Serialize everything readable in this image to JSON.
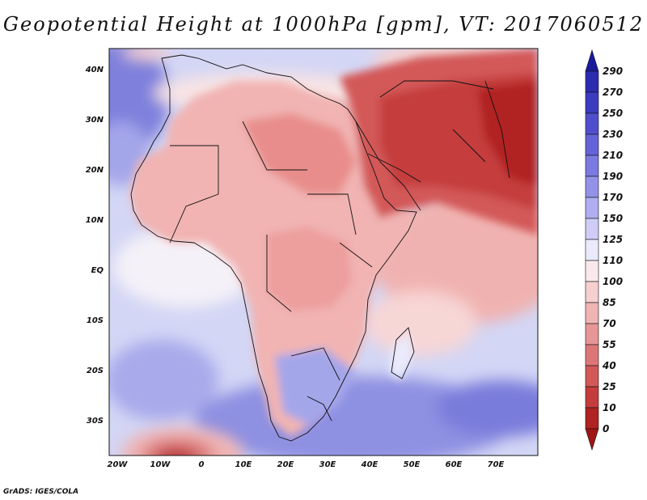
{
  "title": "Geopotential Height at 1000hPa [gpm], VT: 2017060512",
  "footer": "GrADS: IGES/COLA",
  "map": {
    "lon_ticks": [
      "20W",
      "10W",
      "0",
      "10E",
      "20E",
      "30E",
      "40E",
      "50E",
      "60E",
      "70E"
    ],
    "lat_ticks": [
      "40N",
      "30N",
      "20N",
      "10N",
      "EQ",
      "10S",
      "20S",
      "30S"
    ]
  },
  "colorbar": {
    "labels": [
      "290",
      "270",
      "250",
      "230",
      "210",
      "190",
      "170",
      "150",
      "125",
      "110",
      "100",
      "85",
      "70",
      "55",
      "40",
      "25",
      "10",
      "0"
    ],
    "colors": [
      "#1a1a9c",
      "#2c2cb0",
      "#3c3cc0",
      "#4f4fcd",
      "#6464d8",
      "#7a7ae0",
      "#9292e8",
      "#aeaef0",
      "#cdcdf6",
      "#eaeafc",
      "#fbe9e9",
      "#f6cfcf",
      "#efb4b4",
      "#e69696",
      "#dd7777",
      "#d35959",
      "#c53c3c",
      "#b12222",
      "#a01515"
    ]
  },
  "colors": {
    "ocean_west": "#cfd3f4",
    "ocean_deep": "#7e80dc",
    "land": "#f1b0ae",
    "arabia": "#c53c3c",
    "south_africa": "#9ea0e6",
    "low_center": "#a01515"
  }
}
